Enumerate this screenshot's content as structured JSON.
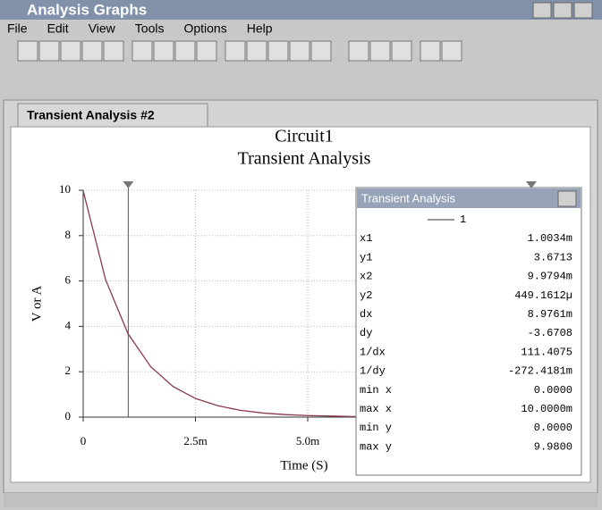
{
  "window": {
    "title": "Analysis Graphs",
    "menu": [
      "File",
      "Edit",
      "View",
      "Tools",
      "Options",
      "Help"
    ],
    "tab": "Transient Analysis #2"
  },
  "chart_data": {
    "type": "line",
    "title": "Circuit1",
    "subtitle": "Transient Analysis",
    "x_label": "Time (S)",
    "y_label": "V or A",
    "x": [
      0,
      0.0005,
      0.001,
      0.0015,
      0.002,
      0.0025,
      0.003,
      0.0035,
      0.004,
      0.0045,
      0.005,
      0.006,
      0.007,
      0.008,
      0.009,
      0.01
    ],
    "series": [
      {
        "name": "1",
        "color": "#8a3a4a",
        "values": [
          9.98,
          6.05,
          3.67,
          2.23,
          1.35,
          0.82,
          0.5,
          0.3,
          0.18,
          0.11,
          0.07,
          0.025,
          0.009,
          0.003,
          0.001,
          0.0005
        ]
      }
    ],
    "xlim": [
      0,
      0.01
    ],
    "ylim": [
      0,
      10
    ],
    "xticks": [
      0,
      {
        "value": 0.0025,
        "label": "2.5m"
      },
      {
        "value": 0.005,
        "label": "5.0m"
      }
    ],
    "yticks": [
      0,
      2,
      4,
      6,
      8,
      10
    ],
    "grid": true,
    "cursors": [
      0.0010034,
      0.0099794
    ]
  },
  "panel": {
    "title": "Transient Analysis",
    "rows": [
      [
        "x1",
        "1.0034m"
      ],
      [
        "y1",
        "3.6713"
      ],
      [
        "x2",
        "9.9794m"
      ],
      [
        "y2",
        "449.1612µ"
      ],
      [
        "dx",
        "8.9761m"
      ],
      [
        "dy",
        "-3.6708"
      ],
      [
        "1/dx",
        "111.4075"
      ],
      [
        "1/dy",
        "-272.4181m"
      ],
      [
        "min x",
        "0.0000"
      ],
      [
        "max x",
        "10.0000m"
      ],
      [
        "min y",
        "0.0000"
      ],
      [
        "max y",
        "9.9800"
      ]
    ]
  }
}
